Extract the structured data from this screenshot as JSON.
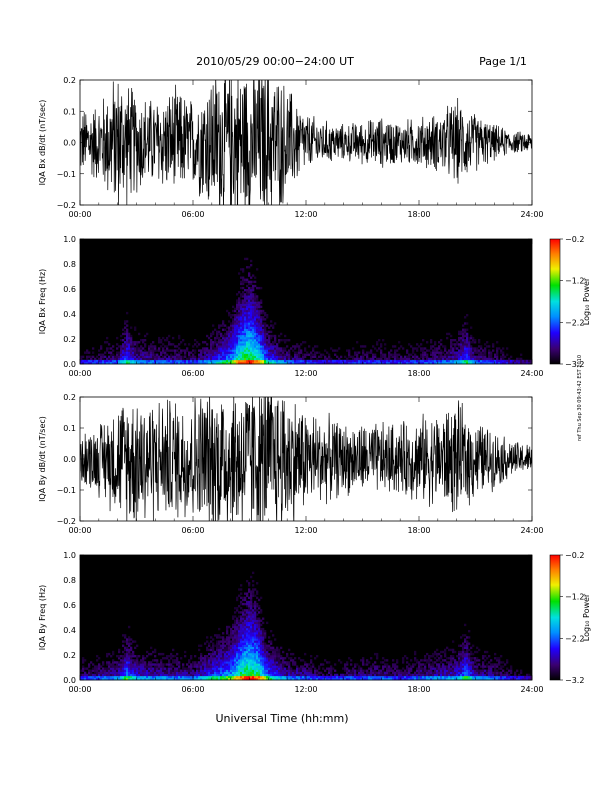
{
  "header": {
    "title": "2010/05/29  00:00−24:00 UT",
    "page": "Page 1/1"
  },
  "xlabel": "Universal Time (hh:mm)",
  "side_stamp": "ref Thu Sep 30 09:43:42 EST 2010",
  "chart_data": [
    {
      "type": "line",
      "ylabel": "IQA Bx dB/dt (nT/sec)",
      "xlim": [
        0,
        24
      ],
      "ylim": [
        -0.2,
        0.2
      ],
      "xticks": [
        "00:00",
        "06:00",
        "12:00",
        "18:00",
        "24:00"
      ],
      "yticks": [
        "0.2",
        "0.1",
        "0.0",
        "−0.1",
        "−0.2"
      ],
      "ytick_values": [
        0.2,
        0.1,
        0.0,
        -0.1,
        -0.2
      ],
      "series_color": "#000000",
      "envelope": {
        "x": [
          0,
          1,
          2,
          3,
          4,
          5,
          6,
          7,
          7.5,
          8,
          9,
          10,
          11,
          12,
          13,
          14,
          15,
          16,
          17,
          18,
          19,
          20,
          21,
          22,
          23,
          24
        ],
        "amplitude": [
          0.09,
          0.11,
          0.2,
          0.14,
          0.12,
          0.15,
          0.12,
          0.2,
          0.22,
          0.22,
          0.22,
          0.22,
          0.16,
          0.08,
          0.06,
          0.05,
          0.06,
          0.07,
          0.06,
          0.07,
          0.08,
          0.12,
          0.08,
          0.05,
          0.03,
          0.03
        ]
      }
    },
    {
      "type": "heatmap",
      "ylabel": "IQA Bx Freq (Hz)",
      "xlim": [
        0,
        24
      ],
      "ylim": [
        0,
        1.0
      ],
      "xticks": [
        "00:00",
        "06:00",
        "12:00",
        "18:00",
        "24:00"
      ],
      "yticks": [
        "1.0",
        "0.8",
        "0.6",
        "0.4",
        "0.2",
        "0.0"
      ],
      "ytick_values": [
        1.0,
        0.8,
        0.6,
        0.4,
        0.2,
        0.0
      ],
      "colorbar": {
        "label": "Log₁₀ Power",
        "range": [
          -3.2,
          -0.2
        ],
        "ticks": [
          "−0.2",
          "−1.2",
          "−2.2",
          "−3.2"
        ],
        "tick_values": [
          -0.2,
          -1.2,
          -2.2,
          -3.2
        ]
      },
      "activity": {
        "x": [
          0,
          1,
          2,
          2.5,
          3,
          4,
          5,
          6,
          7,
          8,
          8.5,
          9,
          9.5,
          10,
          11,
          12,
          13,
          14,
          15,
          16,
          17,
          18,
          19,
          20,
          20.5,
          21,
          22,
          23,
          24
        ],
        "level": [
          0.25,
          0.3,
          0.35,
          0.6,
          0.4,
          0.35,
          0.35,
          0.3,
          0.45,
          0.65,
          0.9,
          1.0,
          0.85,
          0.55,
          0.35,
          0.3,
          0.25,
          0.25,
          0.3,
          0.3,
          0.28,
          0.3,
          0.35,
          0.4,
          0.6,
          0.35,
          0.3,
          0.2,
          0.15
        ]
      }
    },
    {
      "type": "line",
      "ylabel": "IQA By dB/dt (nT/sec)",
      "xlim": [
        0,
        24
      ],
      "ylim": [
        -0.2,
        0.2
      ],
      "xticks": [
        "00:00",
        "06:00",
        "12:00",
        "18:00",
        "24:00"
      ],
      "yticks": [
        "0.2",
        "0.1",
        "0.0",
        "−0.1",
        "−0.2"
      ],
      "ytick_values": [
        0.2,
        0.1,
        0.0,
        -0.1,
        -0.2
      ],
      "series_color": "#000000",
      "envelope": {
        "x": [
          0,
          1,
          2,
          3,
          4,
          5,
          6,
          7,
          7.5,
          8,
          9,
          10,
          11,
          12,
          13,
          14,
          15,
          16,
          17,
          18,
          19,
          20,
          21,
          22,
          23,
          24
        ],
        "amplitude": [
          0.07,
          0.1,
          0.16,
          0.2,
          0.17,
          0.17,
          0.18,
          0.21,
          0.22,
          0.22,
          0.22,
          0.22,
          0.2,
          0.14,
          0.12,
          0.1,
          0.1,
          0.1,
          0.1,
          0.12,
          0.13,
          0.16,
          0.11,
          0.08,
          0.05,
          0.04
        ]
      }
    },
    {
      "type": "heatmap",
      "ylabel": "IQA By Freq (Hz)",
      "xlim": [
        0,
        24
      ],
      "ylim": [
        0,
        1.0
      ],
      "xticks": [
        "00:00",
        "06:00",
        "12:00",
        "18:00",
        "24:00"
      ],
      "yticks": [
        "1.0",
        "0.8",
        "0.6",
        "0.4",
        "0.2",
        "0.0"
      ],
      "ytick_values": [
        1.0,
        0.8,
        0.6,
        0.4,
        0.2,
        0.0
      ],
      "colorbar": {
        "label": "Log₁₀ Power",
        "range": [
          -3.2,
          -0.2
        ],
        "ticks": [
          "−0.2",
          "−1.2",
          "−2.2",
          "−3.2"
        ],
        "tick_values": [
          -0.2,
          -1.2,
          -2.2,
          -3.2
        ]
      },
      "activity": {
        "x": [
          0,
          1,
          2,
          2.5,
          3,
          4,
          5,
          6,
          7,
          8,
          8.5,
          9,
          9.5,
          10,
          11,
          12,
          13,
          14,
          15,
          16,
          17,
          18,
          19,
          20,
          20.5,
          21,
          22,
          23,
          24
        ],
        "level": [
          0.3,
          0.35,
          0.4,
          0.65,
          0.45,
          0.4,
          0.4,
          0.35,
          0.55,
          0.7,
          0.9,
          1.0,
          0.9,
          0.6,
          0.4,
          0.35,
          0.3,
          0.3,
          0.35,
          0.35,
          0.3,
          0.35,
          0.4,
          0.45,
          0.65,
          0.4,
          0.35,
          0.25,
          0.2
        ]
      }
    }
  ]
}
